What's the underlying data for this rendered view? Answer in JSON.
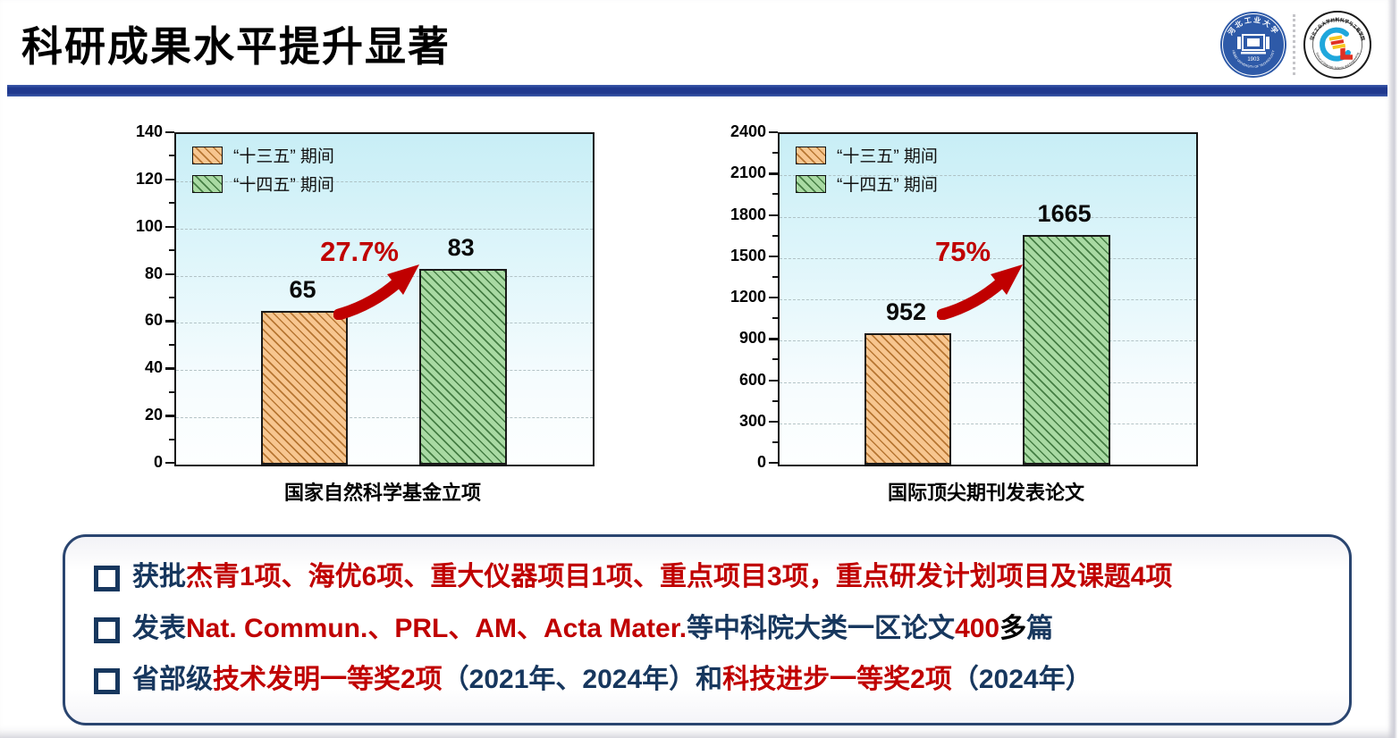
{
  "title": "科研成果水平提升显著",
  "logos": {
    "university_zh": "河北工业大学",
    "university_en": "HEBEI UNIVERSITY OF TECHNOLOGY",
    "university_year": "1903",
    "school_zh": "河北工业大学材料科学与工程学院",
    "school_en": "School of Materials Science and Engineering"
  },
  "colors": {
    "accent_bar": "#20398F",
    "navy_text": "#17375E",
    "red_text": "#C00000",
    "plot_bg_top": "#C8EEF6",
    "orange_fill": "#F7C690",
    "orange_hatch": "#B06E28",
    "green_fill": "#A9DAA3",
    "green_hatch": "#346E34",
    "box_border": "#2A4570",
    "arrow": "#C00000"
  },
  "chart_data": [
    {
      "type": "bar",
      "title": "",
      "xlabel": "国家自然科学基金立项",
      "ylabel": "",
      "categories": [
        "“十三五”期间",
        "“十四五”期间"
      ],
      "values": [
        65,
        83
      ],
      "value_labels": [
        "65",
        "83"
      ],
      "growth_label": "27.7%",
      "ylim": [
        0,
        140
      ],
      "ytick_step": 20,
      "grid": true,
      "legend": [
        "“十三五” 期间",
        "“十四五” 期间"
      ],
      "legend_position": "top-left"
    },
    {
      "type": "bar",
      "title": "",
      "xlabel": "国际顶尖期刊发表论文",
      "ylabel": "",
      "categories": [
        "“十三五”期间",
        "“十四五”期间"
      ],
      "values": [
        952,
        1665
      ],
      "value_labels": [
        "952",
        "1665"
      ],
      "growth_label": "75%",
      "ylim": [
        0,
        2400
      ],
      "ytick_step": 300,
      "grid": true,
      "legend": [
        "“十三五” 期间",
        "“十四五” 期间"
      ],
      "legend_position": "top-left"
    }
  ],
  "bullets": [
    {
      "segments": [
        {
          "text": "获批",
          "color": "navy"
        },
        {
          "text": "杰青1项、海优6项、重大仪器项目1项、重点项目3项，重点研发计划项目及课题4项",
          "color": "red"
        }
      ]
    },
    {
      "segments": [
        {
          "text": "发表",
          "color": "navy"
        },
        {
          "text": "Nat. Commun.、PRL、AM、Acta Mater.",
          "color": "red"
        },
        {
          "text": "等中科院大类一区论文",
          "color": "navy"
        },
        {
          "text": "400",
          "color": "red"
        },
        {
          "text": "多",
          "color": "black"
        },
        {
          "text": "篇",
          "color": "navy"
        }
      ]
    },
    {
      "segments": [
        {
          "text": "省部级",
          "color": "navy"
        },
        {
          "text": "技术发明一等奖2项",
          "color": "red"
        },
        {
          "text": "（2021年、2024年）和",
          "color": "navy"
        },
        {
          "text": "科技进步一等奖2项",
          "color": "red"
        },
        {
          "text": "（2024年）",
          "color": "navy"
        }
      ]
    }
  ]
}
